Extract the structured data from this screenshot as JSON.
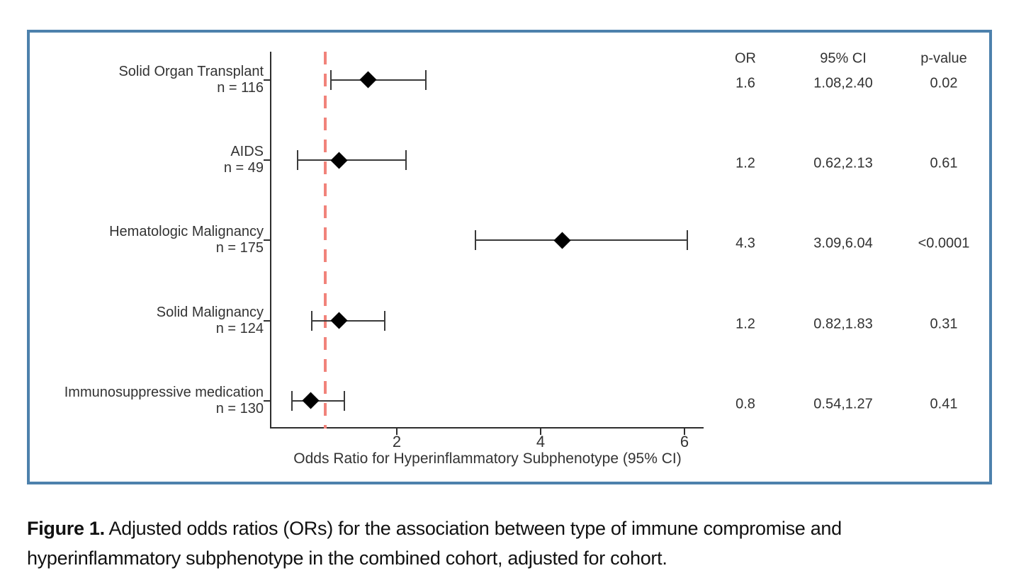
{
  "colors": {
    "panel_border": "#4d81ac",
    "reference_line": "#f1837b",
    "axis": "#2e2e2e",
    "marker": "#000000",
    "text": "#333333"
  },
  "caption": {
    "label": "Figure 1.",
    "text": "Adjusted odds ratios (ORs) for the association between type of immune compromise and hyperinflammatory subphenotype in the combined cohort, adjusted for cohort."
  },
  "chart_data": {
    "type": "forest",
    "title": "",
    "xlabel": "Odds Ratio for Hyperinflammatory Subphenotype (95% CI)",
    "x_ticks": [
      2,
      4,
      6
    ],
    "x_tick_labels": [
      "2",
      "4",
      "6"
    ],
    "xlim": [
      0.256,
      6.266
    ],
    "reference_line": 1.0,
    "grid": false,
    "legend": "none",
    "marker_shape": "diamond",
    "columns": [
      "OR",
      "95% CI",
      "p-value"
    ],
    "rows": [
      {
        "label": "Solid Organ Transplant",
        "n_label": "n = 116",
        "or": 1.6,
        "ci_lo": 1.08,
        "ci_hi": 2.4,
        "or_text": "1.6",
        "ci_text": "1.08,2.40",
        "p_text": "0.02"
      },
      {
        "label": "AIDS",
        "n_label": "n = 49",
        "or": 1.2,
        "ci_lo": 0.62,
        "ci_hi": 2.13,
        "or_text": "1.2",
        "ci_text": "0.62,2.13",
        "p_text": "0.61"
      },
      {
        "label": "Hematologic Malignancy",
        "n_label": "n = 175",
        "or": 4.3,
        "ci_lo": 3.09,
        "ci_hi": 6.04,
        "or_text": "4.3",
        "ci_text": "3.09,6.04",
        "p_text": "<0.0001"
      },
      {
        "label": "Solid Malignancy",
        "n_label": "n = 124",
        "or": 1.2,
        "ci_lo": 0.82,
        "ci_hi": 1.83,
        "or_text": "1.2",
        "ci_text": "0.82,1.83",
        "p_text": "0.31"
      },
      {
        "label": "Immunosuppressive medication",
        "n_label": "n = 130",
        "or": 0.8,
        "ci_lo": 0.54,
        "ci_hi": 1.27,
        "or_text": "0.8",
        "ci_text": "0.54,1.27",
        "p_text": "0.41"
      }
    ]
  }
}
